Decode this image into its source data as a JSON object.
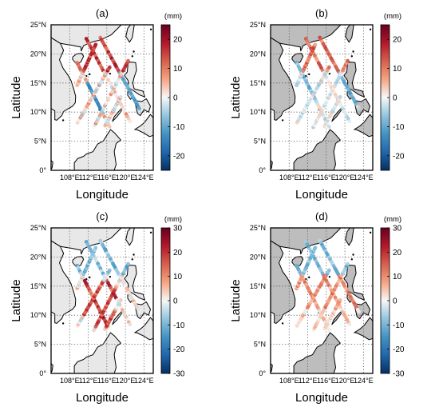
{
  "chart_data": [
    {
      "type": "map",
      "title": "(a)",
      "xlabel": "Longitude",
      "ylabel": "Latitude",
      "x_ticks": [
        "108°E",
        "112°E",
        "116°E",
        "120°E",
        "124°E"
      ],
      "y_ticks": [
        "0°",
        "5°N",
        "10°N",
        "15°N",
        "20°N",
        "25°N"
      ],
      "xlim": [
        104,
        126
      ],
      "ylim": [
        0,
        25
      ],
      "land_color": "#e8e8e8",
      "grid": true,
      "colorbar": {
        "unit": "(mm)",
        "range": [
          -25,
          25
        ],
        "ticks": [
          "20",
          "10",
          "0",
          "-10",
          "-20"
        ],
        "colormap": "RdBu_r"
      }
    },
    {
      "type": "map",
      "title": "(b)",
      "xlabel": "Longitude",
      "ylabel": "Latitude",
      "x_ticks": [
        "108°E",
        "112°E",
        "116°E",
        "120°E",
        "124°E"
      ],
      "y_ticks": [
        "0°",
        "5°N",
        "10°N",
        "15°N",
        "20°N",
        "25°N"
      ],
      "xlim": [
        104,
        126
      ],
      "ylim": [
        0,
        25
      ],
      "land_color": "#bdbdbd",
      "grid": true,
      "colorbar": {
        "unit": "(mm)",
        "range": [
          -25,
          25
        ],
        "ticks": [
          "20",
          "10",
          "0",
          "-10",
          "-20"
        ],
        "colormap": "RdBu_r"
      }
    },
    {
      "type": "map",
      "title": "(c)",
      "xlabel": "Longitude",
      "ylabel": "Latitude",
      "x_ticks": [
        "108°E",
        "112°E",
        "116°E",
        "120°E",
        "124°E"
      ],
      "y_ticks": [
        "0°",
        "5°N",
        "10°N",
        "15°N",
        "20°N",
        "25°N"
      ],
      "xlim": [
        104,
        126
      ],
      "ylim": [
        0,
        25
      ],
      "land_color": "#e8e8e8",
      "grid": true,
      "colorbar": {
        "unit": "(mm)",
        "range": [
          -30,
          30
        ],
        "ticks": [
          "30",
          "20",
          "10",
          "0",
          "-10",
          "-20",
          "-30"
        ],
        "colormap": "RdBu_r"
      }
    },
    {
      "type": "map",
      "title": "(d)",
      "xlabel": "Longitude",
      "ylabel": "Latitude",
      "x_ticks": [
        "108°E",
        "112°E",
        "116°E",
        "120°E",
        "124°E"
      ],
      "y_ticks": [
        "0°",
        "5°N",
        "10°N",
        "15°N",
        "20°N",
        "25°N"
      ],
      "xlim": [
        104,
        126
      ],
      "ylim": [
        0,
        25
      ],
      "land_color": "#bdbdbd",
      "grid": true,
      "colorbar": {
        "unit": "(mm)",
        "range": [
          -30,
          30
        ],
        "ticks": [
          "30",
          "20",
          "10",
          "0",
          "-10",
          "-20",
          "-30"
        ],
        "colormap": "RdBu_r"
      }
    }
  ]
}
